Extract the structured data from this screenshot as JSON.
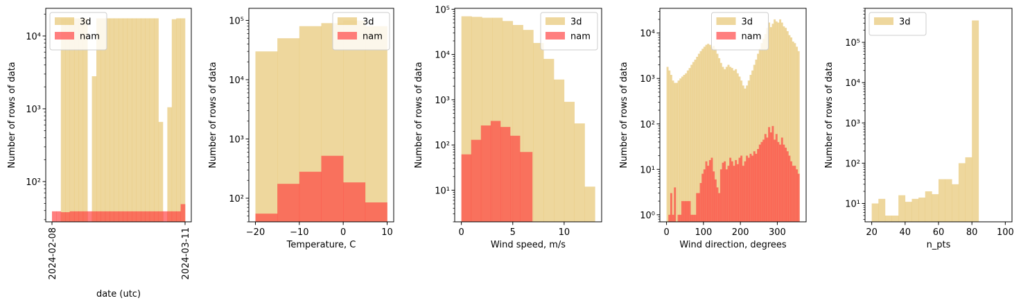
{
  "colors": {
    "3d": "#e3bd5b",
    "nam": "#ff3b3b"
  },
  "chart_data": [
    {
      "type": "histogram",
      "scale_y": "log",
      "xlabel": "date (utc)",
      "ylabel": "Number of rows of data",
      "x_tick_labels": [
        "2024-02-08",
        "2024-03-11"
      ],
      "x_ticks_rotated": true,
      "xlim_days": [
        -1.5,
        33.5
      ],
      "ylim": [
        28,
        24000
      ],
      "y_ticks": [
        {
          "v": 100,
          "label": "10²"
        },
        {
          "v": 1000,
          "label": "10³"
        },
        {
          "v": 10000,
          "label": "10⁴"
        }
      ],
      "legend": {
        "position": "upper-left",
        "entries": [
          "3d",
          "nam"
        ]
      },
      "series": [
        {
          "name": "3d",
          "edges": [
            0,
            1.067,
            2.133,
            3.2,
            4.267,
            5.333,
            6.4,
            7.467,
            8.533,
            9.6,
            10.667,
            11.733,
            12.8,
            13.867,
            14.933,
            16,
            17.067,
            18.133,
            19.2,
            20.267,
            21.333,
            22.4,
            23.467,
            24.533,
            25.6,
            26.667,
            27.733,
            28.8,
            29.867,
            30.933,
            32
          ],
          "counts": [
            0,
            0,
            17500,
            17500,
            17500,
            17500,
            17500,
            17500,
            0,
            2800,
            17500,
            17500,
            17500,
            17500,
            17500,
            17500,
            17500,
            17500,
            17500,
            17500,
            17500,
            17500,
            17500,
            17500,
            660,
            0,
            1050,
            17000,
            17500,
            17500
          ]
        },
        {
          "name": "nam",
          "edges": [
            0,
            1.067,
            2.133,
            3.2,
            4.267,
            5.333,
            6.4,
            7.467,
            8.533,
            9.6,
            10.667,
            11.733,
            12.8,
            13.867,
            14.933,
            16,
            17.067,
            18.133,
            19.2,
            20.267,
            21.333,
            22.4,
            23.467,
            24.533,
            25.6,
            26.667,
            27.733,
            28.8,
            29.867,
            30.933,
            32
          ],
          "counts": [
            39,
            39,
            38,
            38,
            39,
            39,
            39,
            39,
            39,
            39,
            39,
            39,
            39,
            39,
            39,
            39,
            39,
            39,
            39,
            39,
            39,
            39,
            39,
            39,
            39,
            39,
            39,
            39,
            39,
            49
          ]
        }
      ]
    },
    {
      "type": "histogram",
      "scale_y": "log",
      "xlabel": "Temperature, C",
      "ylabel": "Number of rows of data",
      "xlim": [
        -21.5,
        11.5
      ],
      "ylim": [
        40,
        160000
      ],
      "x_ticks": [
        {
          "v": -20,
          "label": "−20"
        },
        {
          "v": -10,
          "label": "−10"
        },
        {
          "v": 0,
          "label": "0"
        },
        {
          "v": 10,
          "label": "10"
        }
      ],
      "y_ticks": [
        {
          "v": 100,
          "label": "10²"
        },
        {
          "v": 1000,
          "label": "10³"
        },
        {
          "v": 10000,
          "label": "10⁴"
        },
        {
          "v": 100000,
          "label": "10⁵"
        }
      ],
      "legend": {
        "position": "upper-right",
        "entries": [
          "3d",
          "nam"
        ]
      },
      "series": [
        {
          "name": "3d",
          "edges": [
            -20,
            -15,
            -10,
            -5,
            0,
            5,
            10
          ],
          "counts": [
            30000,
            50000,
            80000,
            90000,
            100000,
            80000
          ]
        },
        {
          "name": "nam",
          "edges": [
            -20,
            -15,
            -10,
            -5,
            0,
            5,
            10
          ],
          "counts": [
            55,
            175,
            280,
            520,
            185,
            85
          ]
        }
      ]
    },
    {
      "type": "histogram",
      "scale_y": "log",
      "xlabel": "Wind speed, m/s",
      "ylabel": "Number of rows of data",
      "xlim": [
        -0.65,
        13.65
      ],
      "ylim": [
        2,
        105000
      ],
      "x_ticks": [
        {
          "v": 0,
          "label": "0"
        },
        {
          "v": 5,
          "label": "5"
        },
        {
          "v": 10,
          "label": "10"
        }
      ],
      "y_ticks": [
        {
          "v": 10,
          "label": "10¹"
        },
        {
          "v": 100,
          "label": "10²"
        },
        {
          "v": 1000,
          "label": "10³"
        },
        {
          "v": 10000,
          "label": "10⁴"
        },
        {
          "v": 100000,
          "label": "10⁵"
        }
      ],
      "legend": {
        "position": "upper-right",
        "entries": [
          "3d",
          "nam"
        ]
      },
      "series": [
        {
          "name": "3d",
          "edges": [
            0,
            1,
            2,
            3,
            4,
            5,
            6,
            7,
            8,
            9,
            10,
            11,
            12,
            13
          ],
          "counts": [
            70000,
            68000,
            65000,
            65000,
            55000,
            45000,
            35000,
            18000,
            8000,
            2800,
            900,
            300,
            12
          ]
        },
        {
          "name": "nam",
          "edges": [
            0,
            0.95,
            1.9,
            2.85,
            3.8,
            4.75,
            5.7,
            6.9
          ],
          "counts": [
            62,
            130,
            270,
            340,
            250,
            160,
            70
          ]
        }
      ]
    },
    {
      "type": "histogram",
      "scale_y": "log",
      "xlabel": "Wind direction, degrees",
      "ylabel": "Number of rows of data",
      "xlim": [
        -18,
        378
      ],
      "ylim": [
        0.7,
        35000
      ],
      "x_ticks": [
        {
          "v": 0,
          "label": "0"
        },
        {
          "v": 100,
          "label": "100"
        },
        {
          "v": 200,
          "label": "200"
        },
        {
          "v": 300,
          "label": "300"
        }
      ],
      "y_ticks": [
        {
          "v": 1,
          "label": "10⁰"
        },
        {
          "v": 10,
          "label": "10¹"
        },
        {
          "v": 100,
          "label": "10²"
        },
        {
          "v": 1000,
          "label": "10³"
        },
        {
          "v": 10000,
          "label": "10⁴"
        }
      ],
      "legend": {
        "position": "upper-center",
        "entries": [
          "3d",
          "nam"
        ]
      },
      "series": [
        {
          "name": "3d",
          "bin_start": 0,
          "bin_width": 5,
          "counts": [
            1800,
            1500,
            1200,
            900,
            800,
            800,
            900,
            1000,
            1100,
            1200,
            1300,
            1500,
            1700,
            2000,
            2300,
            2600,
            3000,
            3500,
            4000,
            4500,
            5000,
            5500,
            5800,
            5500,
            5000,
            5200,
            4500,
            3500,
            2800,
            2200,
            1800,
            1600,
            1800,
            2000,
            1800,
            1700,
            1500,
            1600,
            1300,
            1100,
            900,
            700,
            600,
            700,
            900,
            1200,
            1500,
            2000,
            2600,
            3500,
            4500,
            6000,
            7500,
            9500,
            13000,
            17000,
            13500,
            16000,
            20000,
            18000,
            17000,
            20000,
            17000,
            14000,
            13000,
            11000,
            9000,
            8000,
            6500,
            6000,
            5000,
            4000
          ]
        },
        {
          "name": "nam",
          "bin_start": 0,
          "bin_width": 5,
          "counts": [
            0,
            1,
            3,
            1,
            4,
            0,
            1,
            1,
            2,
            2,
            2,
            2,
            2,
            1,
            1,
            1,
            3,
            3,
            5,
            8,
            10,
            15,
            12,
            16,
            18,
            9,
            6,
            4,
            3,
            10,
            14,
            15,
            10,
            12,
            18,
            15,
            12,
            16,
            13,
            18,
            20,
            12,
            15,
            20,
            18,
            22,
            20,
            25,
            22,
            28,
            35,
            40,
            45,
            60,
            50,
            85,
            65,
            90,
            45,
            60,
            40,
            35,
            50,
            35,
            30,
            25,
            20,
            15,
            12,
            12,
            10,
            8
          ]
        }
      ]
    },
    {
      "type": "histogram",
      "scale_y": "log",
      "xlabel": "n_pts",
      "ylabel": "Number of rows of data",
      "xlim": [
        16,
        104
      ],
      "ylim": [
        3.5,
        700000
      ],
      "x_ticks": [
        {
          "v": 20,
          "label": "20"
        },
        {
          "v": 40,
          "label": "40"
        },
        {
          "v": 60,
          "label": "60"
        },
        {
          "v": 80,
          "label": "80"
        },
        {
          "v": 100,
          "label": "100"
        }
      ],
      "y_ticks": [
        {
          "v": 10,
          "label": "10¹"
        },
        {
          "v": 100,
          "label": "10²"
        },
        {
          "v": 1000,
          "label": "10³"
        },
        {
          "v": 10000,
          "label": "10⁴"
        },
        {
          "v": 100000,
          "label": "10⁵"
        }
      ],
      "legend": {
        "position": "upper-left",
        "entries": [
          "3d"
        ]
      },
      "series": [
        {
          "name": "3d",
          "edges": [
            20,
            24,
            28,
            32,
            36,
            40,
            44,
            48,
            52,
            56,
            60,
            64,
            68,
            72,
            76,
            80,
            84,
            88,
            92,
            96,
            100
          ],
          "counts": [
            10,
            13,
            5,
            5,
            16,
            11,
            13,
            14,
            20,
            17,
            40,
            40,
            30,
            100,
            140,
            350000,
            0,
            0,
            0,
            0
          ]
        }
      ]
    }
  ]
}
